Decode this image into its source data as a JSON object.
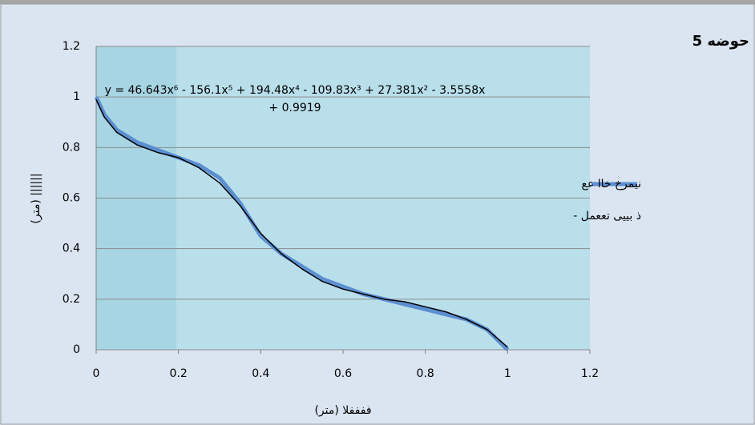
{
  "chart_data": {
    "type": "line",
    "title": "حوضه 5",
    "x_label": "ففففلا (متر)",
    "y_label": "(متر) ||||||",
    "annotation": "y = 46.643x⁶ - 156.1x⁵ + 194.48x⁴ - 109.83x³ + 27.381x² - 3.5558x + 0.9919",
    "xlim": [
      0,
      1.2
    ],
    "ylim": [
      0,
      1.2
    ],
    "xticks": [
      0,
      0.2,
      0.4,
      0.6,
      0.8,
      1,
      1.2
    ],
    "yticks": [
      0,
      0.2,
      0.4,
      0.6,
      0.8,
      1,
      1.2
    ],
    "grid": true,
    "x": [
      0,
      0.02,
      0.05,
      0.1,
      0.15,
      0.2,
      0.25,
      0.3,
      0.35,
      0.4,
      0.45,
      0.5,
      0.55,
      0.6,
      0.65,
      0.7,
      0.75,
      0.8,
      0.85,
      0.9,
      0.95,
      1.0
    ],
    "series": [
      {
        "name": "نیمرخ خاا عع",
        "color": "#5b8fd0",
        "width": 5,
        "values": [
          1.0,
          0.93,
          0.87,
          0.82,
          0.79,
          0.76,
          0.73,
          0.68,
          0.58,
          0.45,
          0.38,
          0.33,
          0.28,
          0.25,
          0.22,
          0.2,
          0.18,
          0.16,
          0.14,
          0.12,
          0.08,
          0.0
        ]
      },
      {
        "name": "ذ  بییی تععمل -",
        "color": "#000000",
        "width": 1.5,
        "values": [
          0.99,
          0.92,
          0.86,
          0.81,
          0.78,
          0.76,
          0.72,
          0.66,
          0.57,
          0.46,
          0.38,
          0.32,
          0.27,
          0.24,
          0.22,
          0.2,
          0.19,
          0.17,
          0.15,
          0.12,
          0.08,
          0.01
        ]
      }
    ]
  }
}
